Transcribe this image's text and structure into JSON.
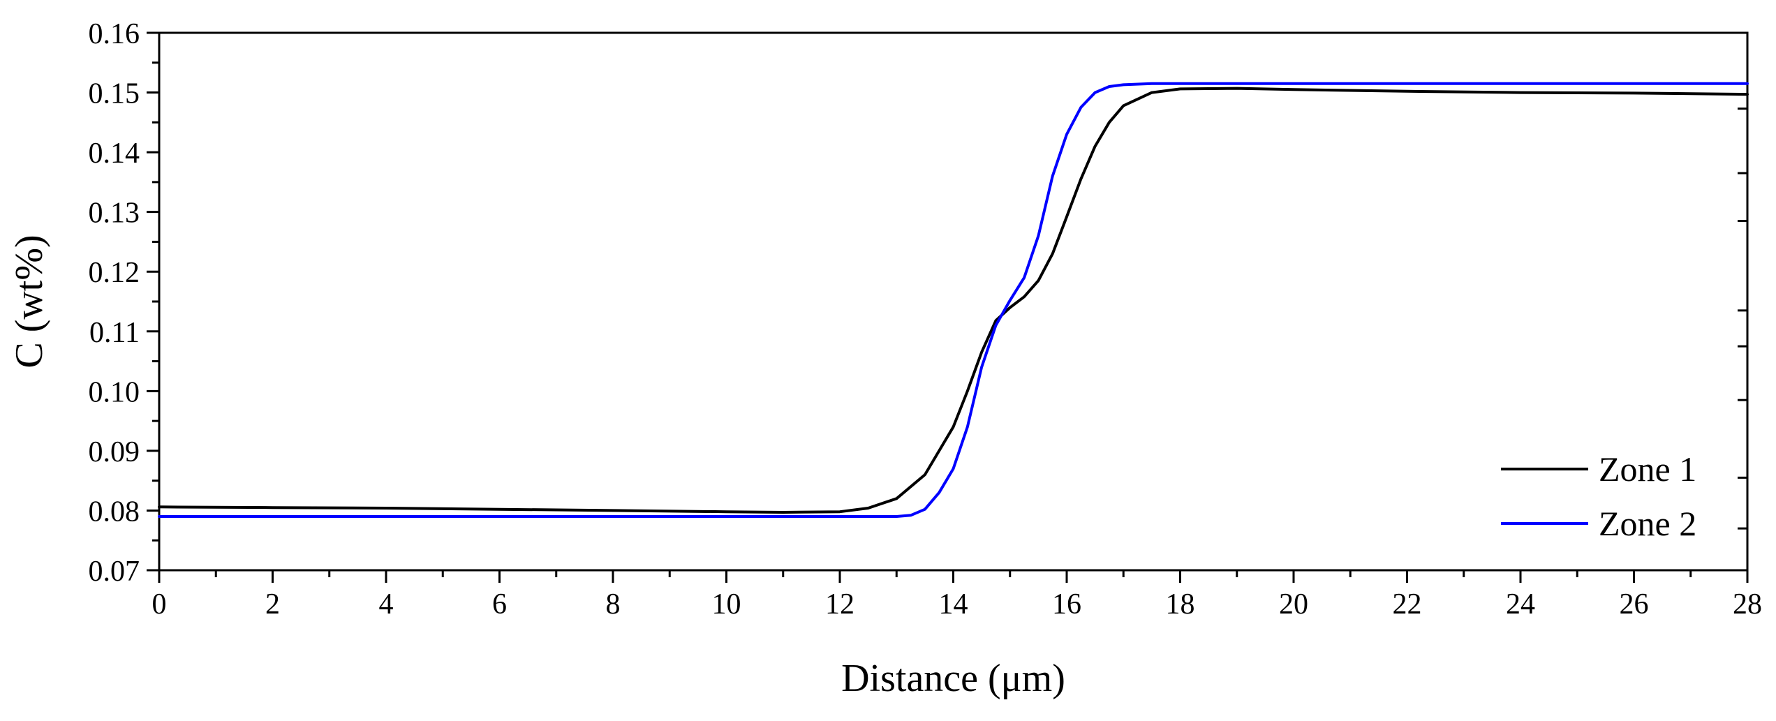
{
  "chart_data": {
    "type": "line",
    "xlabel": "Distance (μm)",
    "ylabel": "C (wt%)",
    "xlim": [
      0,
      28
    ],
    "ylim": [
      0.07,
      0.16
    ],
    "xticks": [
      0,
      2,
      4,
      6,
      8,
      10,
      12,
      14,
      16,
      18,
      20,
      22,
      24,
      26,
      28
    ],
    "yticks": [
      0.07,
      0.08,
      0.09,
      0.1,
      0.11,
      0.12,
      0.13,
      0.14,
      0.15,
      0.16
    ],
    "ytick_labels": [
      "0.07",
      "0.08",
      "0.09",
      "0.10",
      "0.11",
      "0.12",
      "0.13",
      "0.14",
      "0.15",
      "0.16"
    ],
    "xtick_labels": [
      "0",
      "2",
      "4",
      "6",
      "8",
      "10",
      "12",
      "14",
      "16",
      "18",
      "20",
      "22",
      "24",
      "26",
      "28"
    ],
    "grid": false,
    "legend_position": "bottom-right",
    "series": [
      {
        "name": "Zone 1",
        "color": "#000000",
        "points": [
          [
            0,
            0.0806
          ],
          [
            2,
            0.0805
          ],
          [
            4,
            0.0804
          ],
          [
            6,
            0.0802
          ],
          [
            8,
            0.08
          ],
          [
            10,
            0.0798
          ],
          [
            11,
            0.0797
          ],
          [
            12,
            0.0798
          ],
          [
            12.5,
            0.0804
          ],
          [
            13,
            0.082
          ],
          [
            13.5,
            0.086
          ],
          [
            14,
            0.094
          ],
          [
            14.25,
            0.1
          ],
          [
            14.5,
            0.1065
          ],
          [
            14.75,
            0.1118
          ],
          [
            15,
            0.114
          ],
          [
            15.25,
            0.1158
          ],
          [
            15.5,
            0.1185
          ],
          [
            15.75,
            0.123
          ],
          [
            16,
            0.1292
          ],
          [
            16.25,
            0.1355
          ],
          [
            16.5,
            0.141
          ],
          [
            16.75,
            0.145
          ],
          [
            17,
            0.1478
          ],
          [
            17.5,
            0.15
          ],
          [
            18,
            0.1506
          ],
          [
            19,
            0.1507
          ],
          [
            20,
            0.1505
          ],
          [
            22,
            0.1502
          ],
          [
            24,
            0.15
          ],
          [
            26,
            0.1499
          ],
          [
            28,
            0.1497
          ]
        ]
      },
      {
        "name": "Zone 2",
        "color": "#0000FF",
        "points": [
          [
            0,
            0.079
          ],
          [
            4,
            0.079
          ],
          [
            8,
            0.079
          ],
          [
            12,
            0.079
          ],
          [
            13,
            0.079
          ],
          [
            13.25,
            0.0792
          ],
          [
            13.5,
            0.0802
          ],
          [
            13.75,
            0.083
          ],
          [
            14,
            0.087
          ],
          [
            14.25,
            0.094
          ],
          [
            14.5,
            0.104
          ],
          [
            14.75,
            0.111
          ],
          [
            15,
            0.1152
          ],
          [
            15.25,
            0.119
          ],
          [
            15.5,
            0.126
          ],
          [
            15.75,
            0.136
          ],
          [
            16,
            0.143
          ],
          [
            16.25,
            0.1475
          ],
          [
            16.5,
            0.15
          ],
          [
            16.75,
            0.151
          ],
          [
            17,
            0.1513
          ],
          [
            17.5,
            0.1515
          ],
          [
            18,
            0.1515
          ],
          [
            20,
            0.1515
          ],
          [
            24,
            0.1515
          ],
          [
            28,
            0.1515
          ]
        ]
      }
    ]
  }
}
